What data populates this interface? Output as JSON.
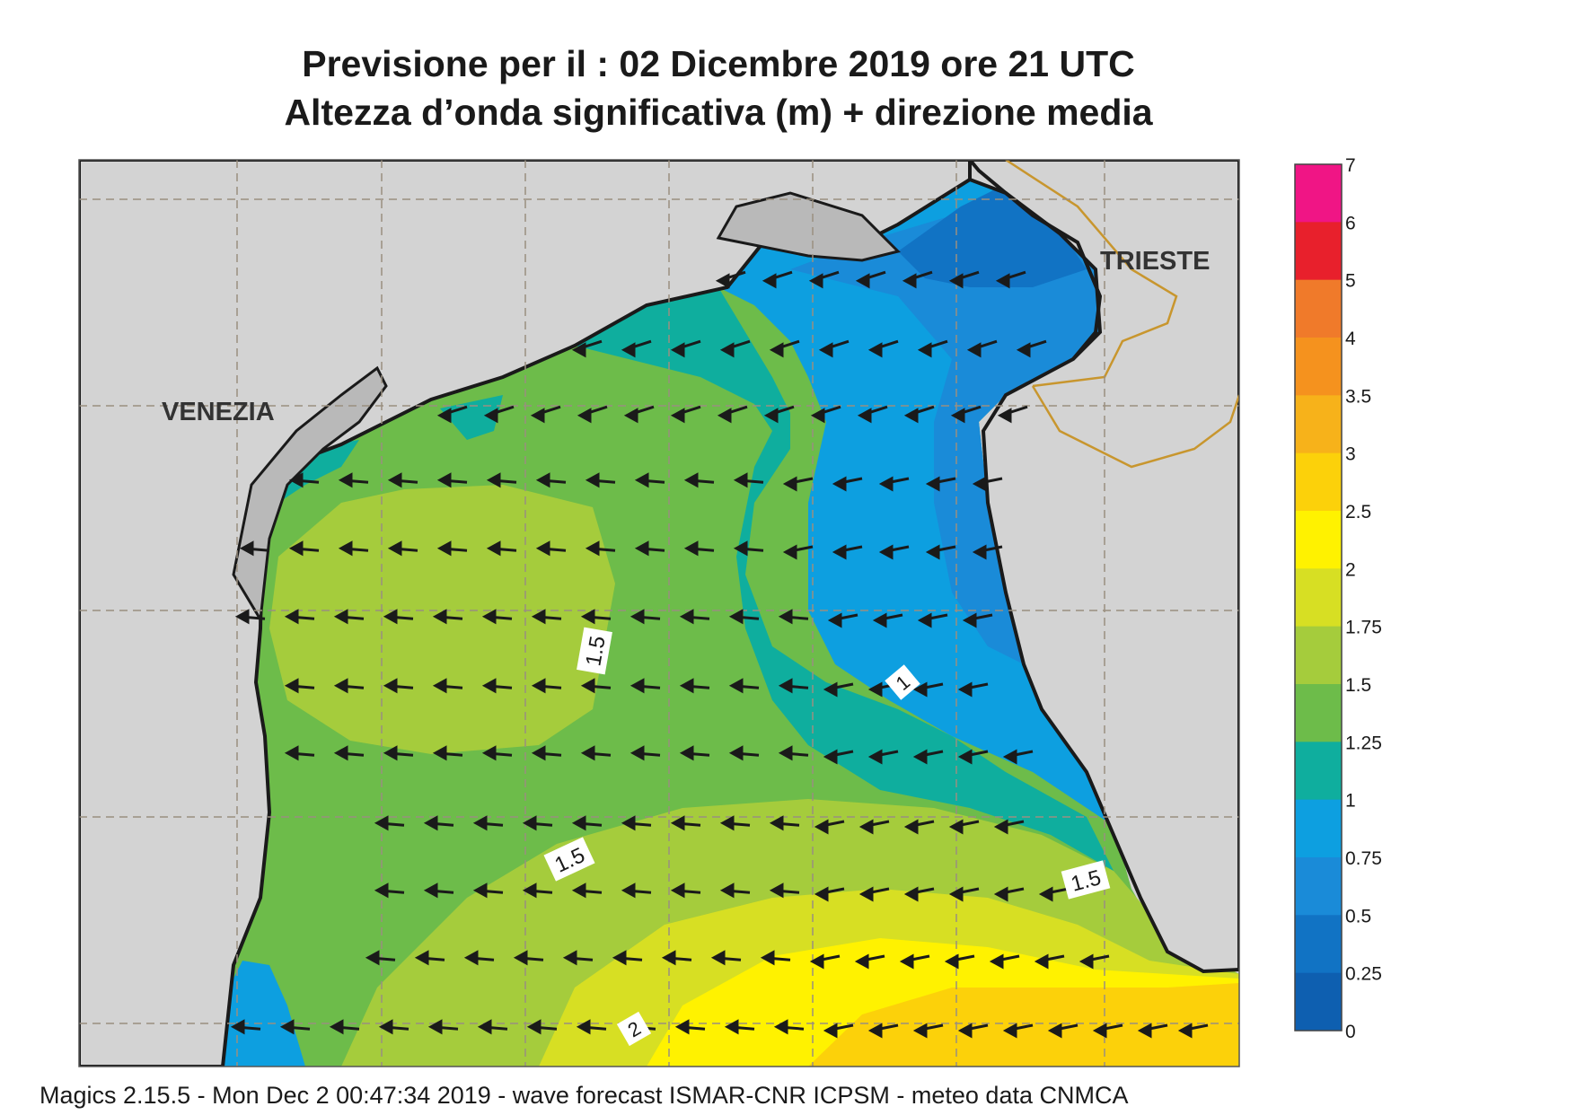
{
  "title_line1": "Previsione per il  :  02 Dicembre  2019   ore 21 UTC",
  "title_line2": "Altezza d’onda significativa (m) + direzione media",
  "footer": "Magics 2.15.5 - Mon Dec  2 00:47:34 2019 - wave forecast  ISMAR-CNR  ICPSM - meteo data   CNMCA",
  "cities": [
    {
      "label": "VENEZIA"
    },
    {
      "label": "TRIESTE"
    }
  ],
  "contour_labels": [
    "1.5",
    "1.5",
    "1.5",
    "1",
    "2"
  ],
  "legend": {
    "labels": [
      "7",
      "6",
      "5",
      "4",
      "3.5",
      "3",
      "2.5",
      "2",
      "1.75",
      "1.5",
      "1.25",
      "1",
      "0.75",
      "0.5",
      "0.25",
      "0"
    ],
    "colors": [
      "#f01585",
      "#e8202c",
      "#f07a2a",
      "#f5921e",
      "#f7b21a",
      "#fcd10a",
      "#fff200",
      "#d7df23",
      "#a5cc3c",
      "#6dbc4a",
      "#0fae9e",
      "#0d9fe0",
      "#1a8bd8",
      "#1173c4",
      "#0e5fb0"
    ]
  },
  "colors": {
    "land": "#d3d3d3",
    "coast": "#1a1a1a",
    "border": "#c8962e",
    "grid": "#9a8f80"
  }
}
